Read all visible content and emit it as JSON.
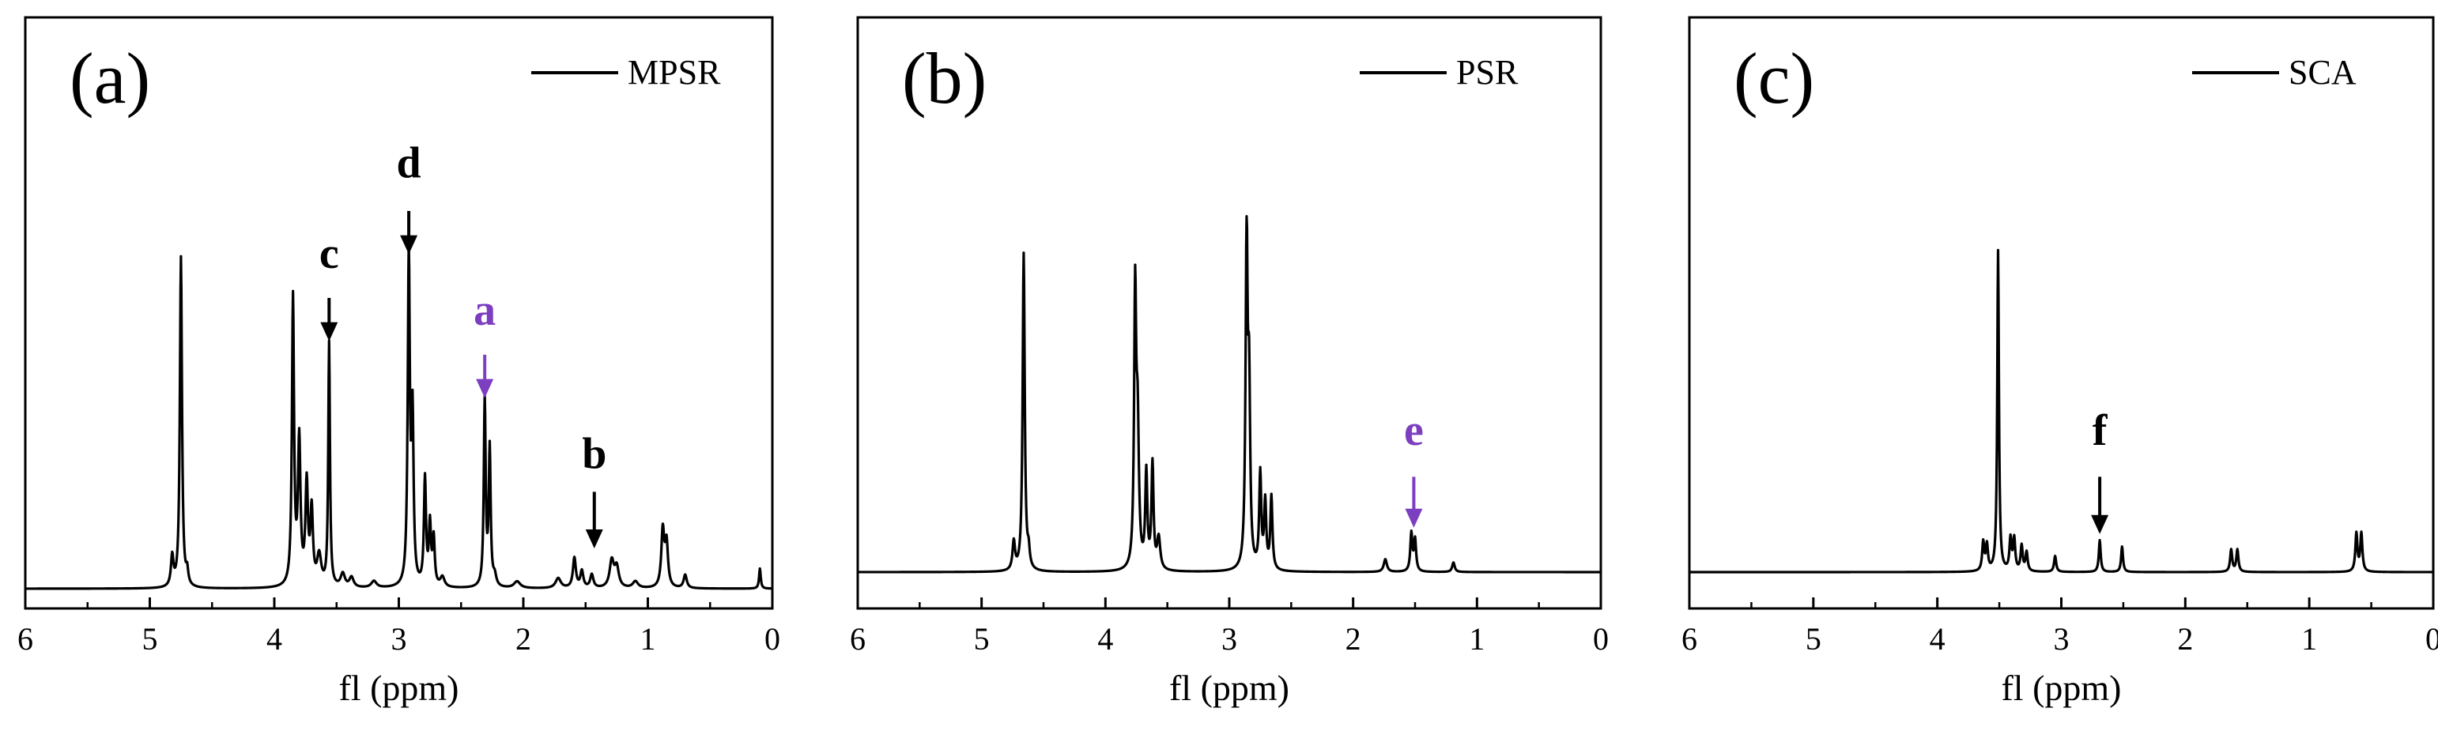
{
  "figure": {
    "description_free": true,
    "colors": {
      "axis": "#000000",
      "trace": "#000000",
      "accent": "#7b3fbf"
    }
  },
  "chart_data": [
    {
      "type": "line",
      "panel_label": "(a)",
      "legend": "MPSR",
      "xlabel": "fl (ppm)",
      "xlim": [
        6,
        0
      ],
      "x_ticks": [
        "6",
        "5",
        "4",
        "3",
        "2",
        "1",
        "0"
      ],
      "baseline": 0.0,
      "ylim": [
        -0.03,
        1.0
      ],
      "peaks": [
        {
          "x": 4.82,
          "h": 0.09,
          "w": 0.012
        },
        {
          "x": 4.75,
          "h": 0.99,
          "w": 0.01
        },
        {
          "x": 4.7,
          "h": 0.04,
          "w": 0.01
        },
        {
          "x": 3.85,
          "h": 0.86,
          "w": 0.01
        },
        {
          "x": 3.8,
          "h": 0.43,
          "w": 0.012
        },
        {
          "x": 3.74,
          "h": 0.3,
          "w": 0.012
        },
        {
          "x": 3.7,
          "h": 0.22,
          "w": 0.012
        },
        {
          "x": 3.64,
          "h": 0.09,
          "w": 0.02
        },
        {
          "x": 3.56,
          "h": 0.73,
          "w": 0.008
        },
        {
          "x": 3.45,
          "h": 0.04,
          "w": 0.02
        },
        {
          "x": 3.38,
          "h": 0.03,
          "w": 0.02
        },
        {
          "x": 3.2,
          "h": 0.02,
          "w": 0.025
        },
        {
          "x": 2.92,
          "h": 0.99,
          "w": 0.01
        },
        {
          "x": 2.89,
          "h": 0.49,
          "w": 0.01
        },
        {
          "x": 2.79,
          "h": 0.32,
          "w": 0.01
        },
        {
          "x": 2.75,
          "h": 0.18,
          "w": 0.01
        },
        {
          "x": 2.72,
          "h": 0.14,
          "w": 0.01
        },
        {
          "x": 2.65,
          "h": 0.03,
          "w": 0.02
        },
        {
          "x": 2.31,
          "h": 0.56,
          "w": 0.009
        },
        {
          "x": 2.27,
          "h": 0.41,
          "w": 0.009
        },
        {
          "x": 2.23,
          "h": 0.03,
          "w": 0.015
        },
        {
          "x": 2.05,
          "h": 0.02,
          "w": 0.03
        },
        {
          "x": 1.72,
          "h": 0.03,
          "w": 0.025
        },
        {
          "x": 1.59,
          "h": 0.09,
          "w": 0.014
        },
        {
          "x": 1.53,
          "h": 0.05,
          "w": 0.014
        },
        {
          "x": 1.45,
          "h": 0.04,
          "w": 0.015
        },
        {
          "x": 1.29,
          "h": 0.08,
          "w": 0.02
        },
        {
          "x": 1.25,
          "h": 0.06,
          "w": 0.02
        },
        {
          "x": 1.1,
          "h": 0.02,
          "w": 0.025
        },
        {
          "x": 0.88,
          "h": 0.17,
          "w": 0.014
        },
        {
          "x": 0.85,
          "h": 0.13,
          "w": 0.014
        },
        {
          "x": 0.7,
          "h": 0.04,
          "w": 0.015
        },
        {
          "x": 0.1,
          "h": 0.06,
          "w": 0.008
        }
      ],
      "annotations": [
        {
          "text": "c",
          "x": 3.56,
          "label_y": 0.96,
          "arrow_from": 0.87,
          "arrow_to": 0.75,
          "color": "#000000"
        },
        {
          "text": "d",
          "x": 2.92,
          "label_y": 1.23,
          "arrow_from": 1.13,
          "arrow_to": 1.01,
          "color": "#000000"
        },
        {
          "text": "a",
          "x": 2.31,
          "label_y": 0.79,
          "arrow_from": 0.7,
          "arrow_to": 0.58,
          "color": "#7b3fbf"
        },
        {
          "text": "b",
          "x": 1.43,
          "label_y": 0.36,
          "arrow_from": 0.29,
          "arrow_to": 0.13,
          "color": "#000000"
        }
      ]
    },
    {
      "type": "line",
      "panel_label": "(b)",
      "legend": "PSR",
      "xlabel": "fl (ppm)",
      "xlim": [
        6,
        0
      ],
      "x_ticks": [
        "6",
        "5",
        "4",
        "3",
        "2",
        "1",
        "0"
      ],
      "baseline": 0.0,
      "ylim": [
        -0.05,
        1.0
      ],
      "peaks": [
        {
          "x": 4.74,
          "h": 0.09,
          "w": 0.012
        },
        {
          "x": 4.66,
          "h": 1.0,
          "w": 0.01
        },
        {
          "x": 4.62,
          "h": 0.05,
          "w": 0.01
        },
        {
          "x": 3.76,
          "h": 0.85,
          "w": 0.01
        },
        {
          "x": 3.74,
          "h": 0.42,
          "w": 0.012
        },
        {
          "x": 3.67,
          "h": 0.3,
          "w": 0.01
        },
        {
          "x": 3.62,
          "h": 0.33,
          "w": 0.01
        },
        {
          "x": 3.57,
          "h": 0.1,
          "w": 0.015
        },
        {
          "x": 2.86,
          "h": 1.04,
          "w": 0.01
        },
        {
          "x": 2.84,
          "h": 0.53,
          "w": 0.01
        },
        {
          "x": 2.75,
          "h": 0.3,
          "w": 0.01
        },
        {
          "x": 2.71,
          "h": 0.21,
          "w": 0.01
        },
        {
          "x": 2.66,
          "h": 0.23,
          "w": 0.01
        },
        {
          "x": 1.74,
          "h": 0.04,
          "w": 0.015
        },
        {
          "x": 1.53,
          "h": 0.12,
          "w": 0.01
        },
        {
          "x": 1.5,
          "h": 0.1,
          "w": 0.01
        },
        {
          "x": 1.19,
          "h": 0.03,
          "w": 0.012
        }
      ],
      "annotations": [
        {
          "text": "e",
          "x": 1.51,
          "label_y": 0.4,
          "arrow_from": 0.3,
          "arrow_to": 0.15,
          "color": "#7b3fbf"
        }
      ]
    },
    {
      "type": "line",
      "panel_label": "(c)",
      "legend": "SCA",
      "xlabel": "fl (ppm)",
      "xlim": [
        6,
        0
      ],
      "x_ticks": [
        "6",
        "5",
        "4",
        "3",
        "2",
        "1",
        "0"
      ],
      "baseline": 0.0,
      "ylim": [
        -0.05,
        1.0
      ],
      "peaks": [
        {
          "x": 3.63,
          "h": 0.09,
          "w": 0.01
        },
        {
          "x": 3.6,
          "h": 0.08,
          "w": 0.01
        },
        {
          "x": 3.51,
          "h": 1.01,
          "w": 0.008
        },
        {
          "x": 3.41,
          "h": 0.1,
          "w": 0.01
        },
        {
          "x": 3.38,
          "h": 0.1,
          "w": 0.01
        },
        {
          "x": 3.32,
          "h": 0.08,
          "w": 0.01
        },
        {
          "x": 3.28,
          "h": 0.06,
          "w": 0.01
        },
        {
          "x": 3.05,
          "h": 0.05,
          "w": 0.01
        },
        {
          "x": 2.69,
          "h": 0.1,
          "w": 0.009
        },
        {
          "x": 2.51,
          "h": 0.08,
          "w": 0.009
        },
        {
          "x": 1.63,
          "h": 0.07,
          "w": 0.01
        },
        {
          "x": 1.58,
          "h": 0.07,
          "w": 0.01
        },
        {
          "x": 0.62,
          "h": 0.12,
          "w": 0.01
        },
        {
          "x": 0.58,
          "h": 0.12,
          "w": 0.01
        }
      ],
      "annotations": [
        {
          "text": "f",
          "x": 2.69,
          "label_y": 0.4,
          "arrow_from": 0.3,
          "arrow_to": 0.13,
          "color": "#000000"
        }
      ]
    }
  ]
}
